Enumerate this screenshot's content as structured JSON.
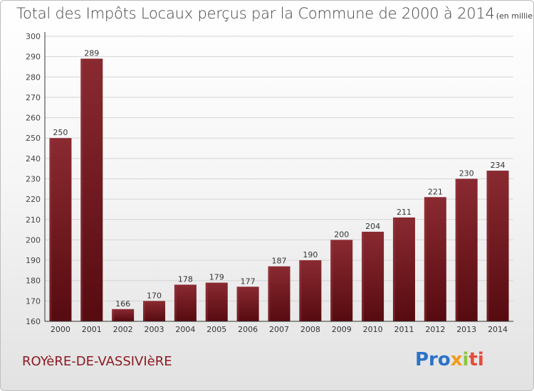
{
  "chart_data": {
    "type": "bar",
    "title": "Total des Impôts Locaux perçus par la Commune de 2000 à 2014",
    "unit_label": "(en milliers d'€)",
    "categories": [
      "2000",
      "2001",
      "2002",
      "2003",
      "2004",
      "2005",
      "2006",
      "2007",
      "2008",
      "2009",
      "2010",
      "2011",
      "2012",
      "2013",
      "2014"
    ],
    "values": [
      250,
      289,
      166,
      170,
      178,
      179,
      177,
      187,
      190,
      200,
      204,
      211,
      221,
      230,
      234
    ],
    "ylim": [
      160,
      300
    ],
    "yticks": [
      160,
      170,
      180,
      190,
      200,
      210,
      220,
      230,
      240,
      250,
      260,
      270,
      280,
      290,
      300
    ],
    "grid": true,
    "bar_color_top": "#8a2a31",
    "bar_color_bottom": "#560b10"
  },
  "footer": {
    "commune": "ROYèRE-DE-VASSIVIèRE",
    "brand_parts": [
      "Pro",
      "x",
      "i",
      "ti"
    ]
  }
}
